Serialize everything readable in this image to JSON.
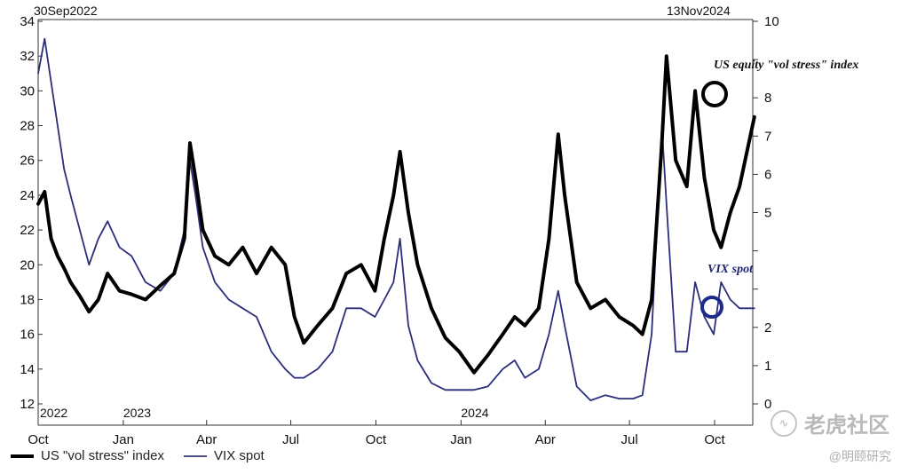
{
  "chart_data": {
    "type": "line",
    "title": "",
    "xlabel": "",
    "ylabel": "",
    "start_label": "30Sep2022",
    "end_label": "13Nov2024",
    "x_ticks": [
      "Oct",
      "Jan",
      "Apr",
      "Jul",
      "Oct",
      "Jan",
      "Apr",
      "Jul",
      "Oct"
    ],
    "year_labels": [
      "2022",
      "2023",
      "2024"
    ],
    "y_left": {
      "range": [
        12,
        34
      ],
      "ticks": [
        12,
        14,
        16,
        18,
        20,
        22,
        24,
        26,
        28,
        30,
        32,
        34
      ]
    },
    "y_right": {
      "range": [
        0,
        10
      ],
      "ticks": [
        0,
        1,
        2,
        3,
        4,
        5,
        6,
        7,
        8,
        9,
        10
      ],
      "labels": [
        "0",
        "1",
        "2",
        "",
        "",
        "5",
        "6",
        "7",
        "8",
        "",
        "10"
      ]
    },
    "annotations": [
      "US equity \"vol stress\" index",
      "VIX spot"
    ],
    "series": [
      {
        "name": "US \"vol stress\" index",
        "color": "#000000",
        "x": [
          "2022-10-01",
          "2022-10-08",
          "2022-10-15",
          "2022-10-22",
          "2022-10-29",
          "2022-11-05",
          "2022-11-15",
          "2022-11-25",
          "2022-12-05",
          "2022-12-15",
          "2022-12-28",
          "2023-01-10",
          "2023-01-25",
          "2023-02-10",
          "2023-02-25",
          "2023-03-08",
          "2023-03-14",
          "2023-03-20",
          "2023-03-28",
          "2023-04-10",
          "2023-04-25",
          "2023-05-10",
          "2023-05-25",
          "2023-06-10",
          "2023-06-25",
          "2023-07-05",
          "2023-07-15",
          "2023-07-30",
          "2023-08-15",
          "2023-08-30",
          "2023-09-15",
          "2023-09-30",
          "2023-10-10",
          "2023-10-20",
          "2023-10-27",
          "2023-11-05",
          "2023-11-15",
          "2023-11-30",
          "2023-12-15",
          "2023-12-30",
          "2024-01-15",
          "2024-01-30",
          "2024-02-15",
          "2024-02-28",
          "2024-03-10",
          "2024-03-25",
          "2024-04-05",
          "2024-04-15",
          "2024-04-22",
          "2024-05-05",
          "2024-05-20",
          "2024-06-05",
          "2024-06-20",
          "2024-07-05",
          "2024-07-15",
          "2024-07-25",
          "2024-08-05",
          "2024-08-10",
          "2024-08-20",
          "2024-09-01",
          "2024-09-10",
          "2024-09-20",
          "2024-09-30",
          "2024-10-08",
          "2024-10-18",
          "2024-10-28",
          "2024-11-13"
        ],
        "y": [
          23.5,
          24.2,
          21.5,
          20.5,
          19.8,
          19.0,
          18.2,
          17.3,
          18.0,
          19.5,
          18.5,
          18.3,
          18.0,
          18.8,
          19.5,
          21.5,
          27.0,
          25.0,
          22.0,
          20.5,
          20.0,
          21.0,
          19.5,
          21.0,
          20.0,
          17.0,
          15.5,
          16.5,
          17.5,
          19.5,
          20.0,
          18.5,
          21.5,
          24.0,
          26.5,
          23.0,
          20.0,
          17.5,
          15.8,
          15.0,
          13.8,
          14.8,
          16.0,
          17.0,
          16.5,
          17.5,
          21.5,
          27.5,
          24.0,
          19.0,
          17.5,
          18.0,
          17.0,
          16.5,
          16.0,
          18.0,
          27.0,
          32.0,
          26.0,
          24.5,
          30.0,
          25.0,
          22.0,
          21.0,
          23.0,
          24.5,
          28.5
        ]
      },
      {
        "name": "VIX spot",
        "color": "#2b2e7a",
        "x": [
          "2022-10-01",
          "2022-10-08",
          "2022-10-15",
          "2022-10-22",
          "2022-10-29",
          "2022-11-05",
          "2022-11-15",
          "2022-11-25",
          "2022-12-05",
          "2022-12-15",
          "2022-12-28",
          "2023-01-10",
          "2023-01-25",
          "2023-02-10",
          "2023-02-25",
          "2023-03-08",
          "2023-03-14",
          "2023-03-20",
          "2023-03-28",
          "2023-04-10",
          "2023-04-25",
          "2023-05-10",
          "2023-05-25",
          "2023-06-10",
          "2023-06-25",
          "2023-07-05",
          "2023-07-15",
          "2023-07-30",
          "2023-08-15",
          "2023-08-30",
          "2023-09-15",
          "2023-09-30",
          "2023-10-10",
          "2023-10-20",
          "2023-10-27",
          "2023-11-05",
          "2023-11-15",
          "2023-11-30",
          "2023-12-15",
          "2023-12-30",
          "2024-01-15",
          "2024-01-30",
          "2024-02-15",
          "2024-02-28",
          "2024-03-10",
          "2024-03-25",
          "2024-04-05",
          "2024-04-15",
          "2024-04-22",
          "2024-05-05",
          "2024-05-20",
          "2024-06-05",
          "2024-06-20",
          "2024-07-05",
          "2024-07-15",
          "2024-07-25",
          "2024-08-05",
          "2024-08-10",
          "2024-08-20",
          "2024-09-01",
          "2024-09-10",
          "2024-09-20",
          "2024-09-30",
          "2024-10-08",
          "2024-10-18",
          "2024-10-28",
          "2024-11-13"
        ],
        "y": [
          31.0,
          33.0,
          30.5,
          28.0,
          25.5,
          24.0,
          22.0,
          20.0,
          21.5,
          22.5,
          21.0,
          20.5,
          19.0,
          18.5,
          19.5,
          22.0,
          26.0,
          24.0,
          21.0,
          19.0,
          18.0,
          17.5,
          17.0,
          15.0,
          14.0,
          13.5,
          13.5,
          14.0,
          15.0,
          17.5,
          17.5,
          17.0,
          18.0,
          19.0,
          21.5,
          16.5,
          14.5,
          13.2,
          12.8,
          12.8,
          12.8,
          13.0,
          14.0,
          14.5,
          13.5,
          14.0,
          16.0,
          18.5,
          16.5,
          13.0,
          12.2,
          12.5,
          12.3,
          12.3,
          12.5,
          16.0,
          28.0,
          23.5,
          15.0,
          15.0,
          19.0,
          17.0,
          16.0,
          19.0,
          18.0,
          17.5,
          17.5
        ]
      }
    ]
  },
  "legend": {
    "items": [
      {
        "label": "US \"vol stress\" index",
        "color": "#000000"
      },
      {
        "label": "VIX spot",
        "color": "#4a4d80"
      }
    ]
  },
  "watermark": {
    "main": "老虎社区",
    "icon": "∿",
    "sub": "@明颐研究"
  }
}
